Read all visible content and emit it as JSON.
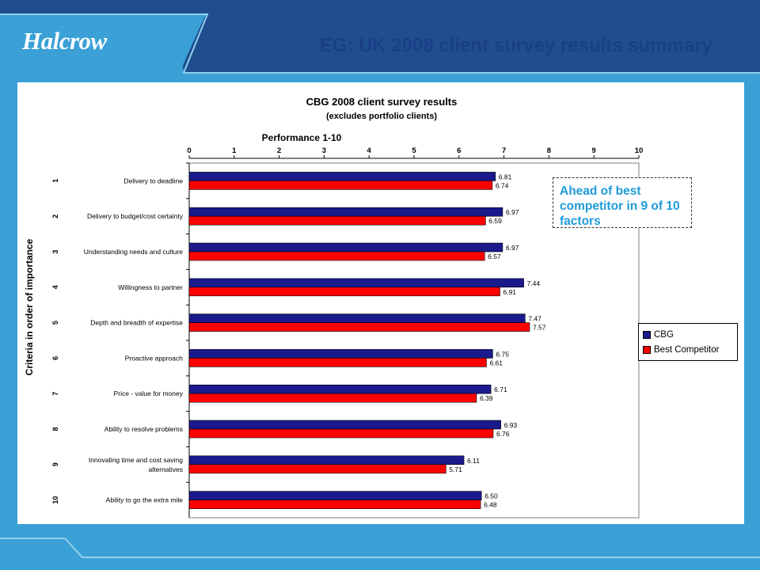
{
  "header": {
    "logo_text": "Halcrow",
    "title": "EG: UK 2008 client survey results summary"
  },
  "callout": {
    "text": "Ahead of best competitor in 9 of 10 factors"
  },
  "colors": {
    "background": "#3aa0d6",
    "title": "#1a3f86",
    "cbg": "#1a1a8c",
    "best_competitor": "#ff0000",
    "callout_text": "#1f9bd8"
  },
  "chart_data": {
    "type": "bar",
    "orientation": "horizontal",
    "title": "CBG 2008 client survey results",
    "subtitle": "(excludes portfolio clients)",
    "xlabel": "Performance 1-10",
    "ylabel": "Criteria in order of importance",
    "xlim": [
      0,
      10
    ],
    "x_ticks": [
      "0",
      "1",
      "2",
      "3",
      "4",
      "5",
      "6",
      "7",
      "8",
      "9",
      "10"
    ],
    "x_axis_position": "top",
    "grid": false,
    "legend_position": "right",
    "ranks": [
      "1",
      "2",
      "3",
      "4",
      "5",
      "6",
      "7",
      "8",
      "9",
      "10"
    ],
    "categories": [
      [
        "Delivery to deadline"
      ],
      [
        "Delivery to budget/cost certainty"
      ],
      [
        "Understanding needs and culture"
      ],
      [
        "Willingness to partner"
      ],
      [
        "Depth and breadth of expertise"
      ],
      [
        "Proactive approach"
      ],
      [
        "Price - value for money"
      ],
      [
        "Ability to resolve problems"
      ],
      [
        "Innovating time and cost saving",
        "alternatives"
      ],
      [
        "Ability to go the extra mile"
      ]
    ],
    "series": [
      {
        "name": "CBG",
        "color": "#1a1a8c",
        "values": [
          6.81,
          6.97,
          6.97,
          7.44,
          7.47,
          6.75,
          6.71,
          6.93,
          6.11,
          6.5
        ],
        "labels": [
          "6.81",
          "6.97",
          "6.97",
          "7.44",
          "7.47",
          "6.75",
          "6.71",
          "6.93",
          "6.11",
          "6.50"
        ]
      },
      {
        "name": "Best Competitor",
        "color": "#ff0000",
        "values": [
          6.74,
          6.59,
          6.57,
          6.91,
          7.57,
          6.61,
          6.39,
          6.76,
          5.71,
          6.48
        ],
        "labels": [
          "6.74",
          "6.59",
          "6.57",
          "6.91",
          "7.57",
          "6.61",
          "6.39",
          "6.76",
          "5.71",
          "6.48"
        ]
      }
    ]
  }
}
